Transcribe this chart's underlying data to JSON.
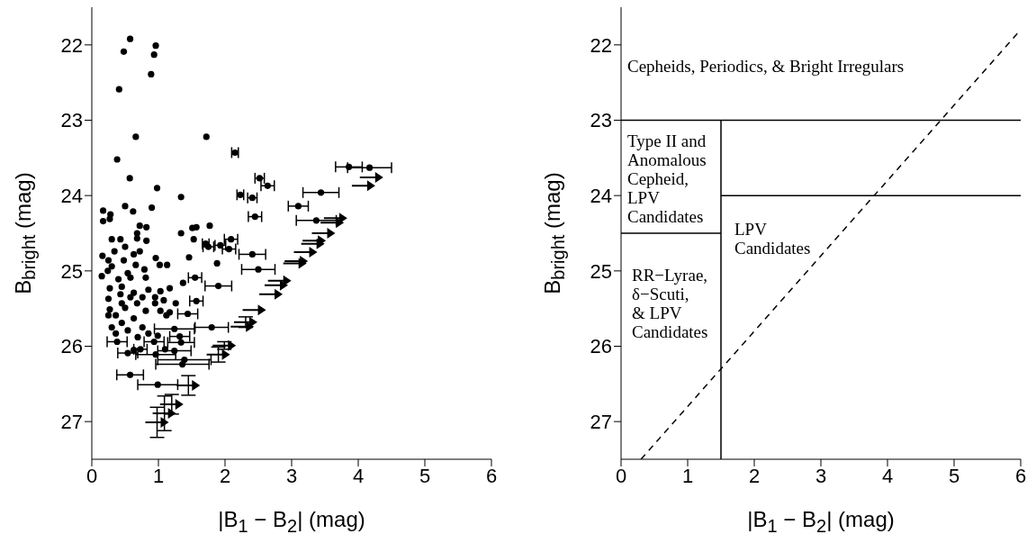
{
  "chart_data": [
    {
      "type": "scatter",
      "xlabel": "|B$_{1}$ − B$_{2}$| (mag)",
      "ylabel": "B$_{bright}$ (mag)",
      "xlim": [
        0,
        6
      ],
      "xticks": [
        0,
        1,
        2,
        3,
        4,
        5,
        6
      ],
      "ylim": [
        27.5,
        21.5
      ],
      "yticks": [
        22,
        23,
        24,
        25,
        26,
        27
      ],
      "marker": "circle",
      "grid": false,
      "legend": false,
      "series": [
        {
          "color": "#000000",
          "x": [
            0.575,
            0.48,
            0.96,
            0.935,
            0.89,
            0.41,
            0.66,
            1.72,
            2.15,
            0.38,
            0.57,
            0.98,
            1.34,
            2.52,
            2.64,
            2.23,
            2.41,
            3.1,
            0.5,
            0.17,
            0.62,
            0.9,
            3.86,
            4.17,
            3.44,
            3.37,
            2.45,
            1.77,
            1.57,
            1.51,
            2.09,
            1.34,
            1.53,
            1.71,
            1.75,
            1.93,
            2.06,
            2.41,
            2.5,
            1.46,
            1.88,
            1.9,
            1.55,
            1.37,
            1.57,
            1.44,
            1.8,
            1.24,
            1.32,
            1.34,
            1.24,
            1.1,
            0.96,
            0.935,
            1.39,
            1.36,
            0.54,
            0.63,
            0.73,
            0.38,
            0.575,
            0.99,
            0.17,
            0.28,
            0.27,
            0.72,
            0.82,
            0.68,
            0.68,
            0.82,
            0.3,
            0.43,
            0.5,
            0.34,
            0.16,
            0.25,
            0.3,
            0.15,
            0.24,
            0.72,
            0.63,
            0.48,
            0.66,
            0.79,
            0.96,
            1.13,
            1.02,
            0.54,
            0.4,
            0.58,
            0.81,
            0.27,
            0.45,
            0.25,
            0.43,
            0.63,
            0.85,
            1.03,
            1.17,
            0.27,
            0.36,
            0.5,
            0.68,
            0.81,
            0.95,
            1.03,
            1.17,
            0.63,
            0.45,
            0.3,
            0.54,
            0.76,
            0.85,
            0.36,
            0.69,
            0.99,
            1.12,
            1.26,
            0.25,
            0.45,
            0.58,
            0.95,
            0.76,
            1.08
          ],
          "values": [
            21.92,
            22.09,
            22.01,
            22.13,
            22.39,
            22.59,
            23.22,
            23.22,
            23.43,
            23.52,
            23.77,
            23.9,
            24.02,
            23.77,
            23.87,
            23.99,
            24.03,
            24.14,
            24.14,
            24.2,
            24.21,
            24.16,
            23.62,
            23.63,
            23.96,
            24.33,
            24.28,
            24.4,
            24.42,
            24.43,
            24.58,
            24.5,
            24.58,
            24.64,
            24.68,
            24.66,
            24.71,
            24.78,
            24.98,
            24.82,
            24.9,
            25.2,
            25.09,
            25.16,
            25.4,
            25.57,
            25.75,
            25.77,
            25.87,
            25.95,
            26.06,
            26.04,
            26.11,
            25.94,
            26.18,
            26.24,
            26.09,
            26.05,
            26.04,
            25.94,
            26.38,
            26.51,
            24.34,
            24.25,
            24.31,
            24.4,
            24.42,
            24.5,
            24.57,
            24.6,
            24.58,
            24.58,
            24.68,
            24.74,
            24.8,
            24.86,
            24.94,
            25.07,
            25.0,
            24.74,
            24.78,
            24.86,
            24.92,
            24.98,
            24.83,
            24.92,
            24.92,
            25.03,
            25.11,
            25.09,
            25.09,
            25.23,
            25.21,
            25.37,
            25.31,
            25.29,
            25.25,
            25.27,
            25.23,
            25.51,
            25.59,
            25.49,
            25.43,
            25.53,
            25.43,
            25.53,
            25.55,
            25.63,
            25.69,
            25.75,
            25.79,
            25.75,
            25.83,
            25.83,
            25.88,
            25.86,
            25.59,
            25.43,
            25.59,
            25.43,
            25.35,
            25.35,
            25.35,
            25.39
          ],
          "xerrors": [
            null,
            null,
            null,
            null,
            null,
            null,
            null,
            null,
            0.05,
            null,
            null,
            null,
            null,
            0.07,
            0.1,
            0.05,
            0.07,
            0.15,
            null,
            null,
            null,
            null,
            0.2,
            0.33,
            0.27,
            0.3,
            0.1,
            null,
            null,
            null,
            0.1,
            null,
            null,
            0.05,
            0.08,
            0.08,
            0.1,
            0.2,
            0.25,
            null,
            null,
            0.2,
            0.1,
            null,
            0.1,
            0.15,
            0.25,
            0.3,
            0.15,
            0.2,
            0.25,
            null,
            0.3,
            0.15,
            0.4,
            0.4,
            0.15,
            null,
            0.1,
            0.15,
            0.2,
            0.3,
            null,
            null,
            null,
            null,
            null,
            null,
            null,
            null,
            null,
            null,
            null,
            null,
            null,
            null,
            null,
            null,
            null,
            null,
            null,
            null,
            null,
            null,
            null,
            null,
            null,
            null,
            null,
            null,
            null,
            null,
            null,
            null,
            null,
            null,
            null,
            null,
            null,
            null,
            null,
            null,
            null,
            null,
            null,
            null,
            null,
            null,
            null,
            null,
            null,
            null,
            null,
            null,
            null,
            null,
            null,
            null,
            null,
            null,
            null,
            null,
            null,
            null
          ]
        },
        {
          "color": "#000000",
          "marker": "triangle",
          "x": [
            4.2,
            4.08,
            3.66,
            3.61,
            3.48,
            3.34,
            3.32,
            3.21,
            3.07,
            3.05,
            2.82,
            2.77,
            2.69,
            2.44,
            2.31,
            2.26,
            1.99,
            1.9,
            1.45,
            1.2,
            1.09,
            0.98
          ],
          "values": [
            23.76,
            23.87,
            24.3,
            24.36,
            24.5,
            24.6,
            24.64,
            24.75,
            24.87,
            24.9,
            25.13,
            25.19,
            25.31,
            25.52,
            25.68,
            25.74,
            25.99,
            26.11,
            26.52,
            26.77,
            26.89,
            27.01
          ],
          "errors": [
            null,
            null,
            null,
            null,
            null,
            null,
            null,
            null,
            null,
            null,
            null,
            null,
            null,
            null,
            0.07,
            null,
            0.05,
            0.1,
            0.13,
            0.13,
            0.23,
            0.2
          ]
        }
      ]
    },
    {
      "type": "line",
      "xlabel": "|B$_{1}$ − B$_{2}$| (mag)",
      "ylabel": "B$_{bright}$ (mag)",
      "xlim": [
        0,
        6
      ],
      "xticks": [
        0,
        1,
        2,
        3,
        4,
        5,
        6
      ],
      "ylim": [
        27.5,
        21.5
      ],
      "yticks": [
        22,
        23,
        24,
        25,
        26,
        27
      ],
      "marker": "none",
      "grid": false,
      "legend": false,
      "series": [
        {
          "color": "#000000",
          "line_style": "solid",
          "x": [
            0,
            6
          ],
          "values": [
            23,
            23
          ]
        },
        {
          "color": "#000000",
          "line_style": "solid",
          "x": [
            1.5,
            6
          ],
          "values": [
            24,
            24
          ]
        },
        {
          "color": "#000000",
          "line_style": "solid",
          "x": [
            0,
            1.5
          ],
          "values": [
            24.5,
            24.5
          ]
        },
        {
          "color": "#000000",
          "line_style": "solid",
          "x": [
            1.5,
            1.5
          ],
          "values": [
            23,
            27.5
          ]
        },
        {
          "color": "#000000",
          "line_style": "dashed",
          "x": [
            0.3,
            5.95
          ],
          "values": [
            27.5,
            21.85
          ]
        }
      ],
      "annotations": [
        "Cepheids, Periodics, & Bright Irregulars",
        "Type II and\nAnomalous\nCepheid,\nLPV\nCandidates",
        "LPV\nCandidates",
        "RR−Lyrae,\nδ−Scuti,\n& LPV\nCandidates"
      ]
    }
  ]
}
